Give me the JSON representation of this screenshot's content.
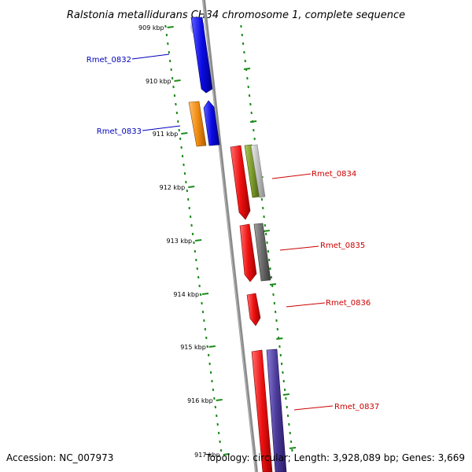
{
  "title": "Ralstonia metallidurans CH34 chromosome 1, complete sequence",
  "footer": {
    "accession": "Accession: NC_007973",
    "topology": "Topology: circular; Length: 3,928,089 bp; Genes: 3,669"
  },
  "ruler": {
    "unit": "kbp",
    "ticks": [
      "909 kbp",
      "910 kbp",
      "911 kbp",
      "912 kbp",
      "913 kbp",
      "914 kbp",
      "915 kbp",
      "916 kbp",
      "917 kbp"
    ]
  },
  "colors": {
    "backbone": "#8a8a8a",
    "dots": "#1a8a1a",
    "forward_label": "#0000bb",
    "reverse_label": "#cc0000",
    "blue": "#0a0ae6",
    "orange": "#f08c10",
    "red": "#ee1111",
    "olive": "#7a9a2a",
    "gray": "#6a6a6a",
    "light_gray": "#bcbcbc",
    "purple": "#4a3a98"
  },
  "genes": [
    {
      "locus": "Rmet_0832",
      "strand": "forward"
    },
    {
      "locus": "Rmet_0833",
      "strand": "forward"
    },
    {
      "locus": "Rmet_0834",
      "strand": "reverse"
    },
    {
      "locus": "Rmet_0835",
      "strand": "reverse"
    },
    {
      "locus": "Rmet_0836",
      "strand": "reverse"
    },
    {
      "locus": "Rmet_0837",
      "strand": "reverse"
    }
  ]
}
